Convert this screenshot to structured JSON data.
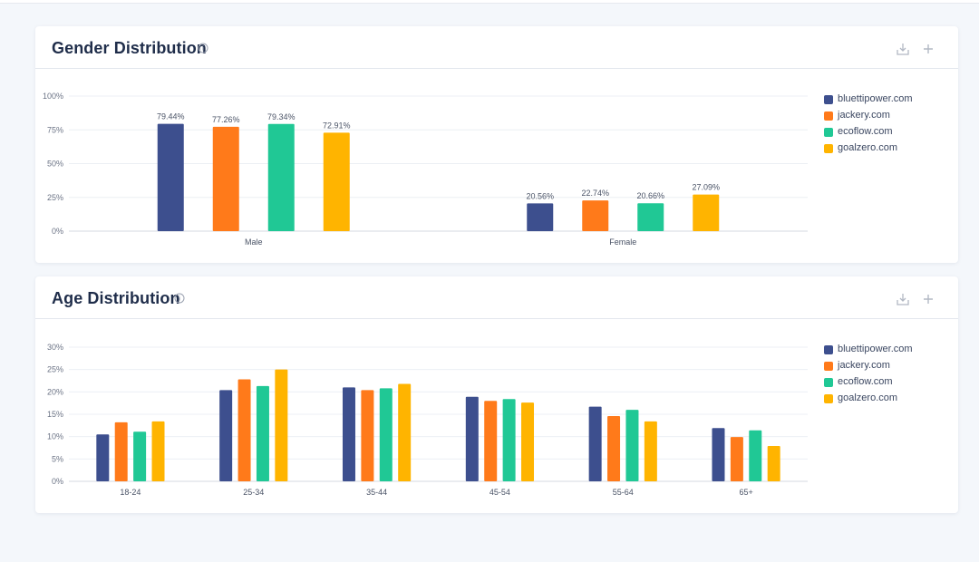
{
  "colors": {
    "bluettipower": "#3d4f8e",
    "jackery": "#ff7a1a",
    "ecoflow": "#20c895",
    "goalzero": "#ffb400",
    "grid": "#eceff4",
    "axis_text": "#6b7385"
  },
  "icons": {
    "info": "info-icon",
    "download": "download-icon",
    "add": "plus-icon"
  },
  "gender": {
    "title": "Gender Distribution",
    "legend": [
      "bluettipower.com",
      "jackery.com",
      "ecoflow.com",
      "goalzero.com"
    ]
  },
  "age": {
    "title": "Age Distribution",
    "legend": [
      "bluettipower.com",
      "jackery.com",
      "ecoflow.com",
      "goalzero.com"
    ]
  },
  "chart_data": [
    {
      "type": "bar",
      "title": "Gender Distribution",
      "categories": [
        "Male",
        "Female"
      ],
      "series": [
        {
          "name": "bluettipower.com",
          "values": [
            79.44,
            20.56
          ],
          "labels": [
            "79.44%",
            "20.56%"
          ]
        },
        {
          "name": "jackery.com",
          "values": [
            77.26,
            22.74
          ],
          "labels": [
            "77.26%",
            "22.74%"
          ]
        },
        {
          "name": "ecoflow.com",
          "values": [
            79.34,
            20.66
          ],
          "labels": [
            "79.34%",
            "20.66%"
          ]
        },
        {
          "name": "goalzero.com",
          "values": [
            72.91,
            27.09
          ],
          "labels": [
            "72.91%",
            "27.09%"
          ]
        }
      ],
      "yticks": [
        0,
        25,
        50,
        75,
        100
      ],
      "ytick_labels": [
        "0%",
        "25%",
        "50%",
        "75%",
        "100%"
      ],
      "ylim": [
        0,
        100
      ],
      "data_labels": true,
      "grid": true,
      "legend_position": "right"
    },
    {
      "type": "bar",
      "title": "Age Distribution",
      "categories": [
        "18-24",
        "25-34",
        "35-44",
        "45-54",
        "55-64",
        "65+"
      ],
      "series": [
        {
          "name": "bluettipower.com",
          "values": [
            10.5,
            20.4,
            21.0,
            18.9,
            16.7,
            11.9
          ]
        },
        {
          "name": "jackery.com",
          "values": [
            13.2,
            22.8,
            20.4,
            18.0,
            14.6,
            9.9
          ]
        },
        {
          "name": "ecoflow.com",
          "values": [
            11.1,
            21.3,
            20.8,
            18.4,
            16.0,
            11.4
          ]
        },
        {
          "name": "goalzero.com",
          "values": [
            13.4,
            25.0,
            21.8,
            17.6,
            13.4,
            7.9
          ]
        }
      ],
      "yticks": [
        0,
        5,
        10,
        15,
        20,
        25,
        30
      ],
      "ytick_labels": [
        "0%",
        "5%",
        "10%",
        "15%",
        "20%",
        "25%",
        "30%"
      ],
      "ylim": [
        0,
        30
      ],
      "data_labels": false,
      "grid": true,
      "legend_position": "right"
    }
  ]
}
